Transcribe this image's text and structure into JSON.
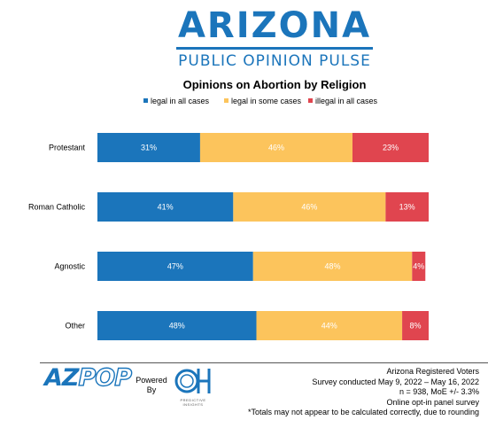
{
  "header": {
    "brand_name": "ARIZONA",
    "brand_sub": "PUBLIC OPINION PULSE"
  },
  "chart_data": {
    "type": "bar",
    "orientation": "horizontal",
    "stacked": true,
    "title": "Opinions on Abortion by Religion",
    "categories": [
      "Protestant",
      "Roman Catholic",
      "Agnostic",
      "Other"
    ],
    "series": [
      {
        "name": "legal in all cases",
        "color": "#1b75bb",
        "values": [
          31,
          41,
          47,
          48
        ],
        "labels": [
          "31%",
          "41%",
          "47%",
          "48%"
        ]
      },
      {
        "name": "legal in some cases",
        "color": "#fcc45c",
        "values": [
          46,
          46,
          48,
          44
        ],
        "labels": [
          "46%",
          "46%",
          "48%",
          "44%"
        ]
      },
      {
        "name": "illegal in all cases",
        "color": "#e0454f",
        "values": [
          23,
          13,
          4,
          8
        ],
        "labels": [
          "23%",
          "13%",
          "4%",
          "8%"
        ]
      }
    ],
    "xlim": [
      0,
      100
    ],
    "legend": "top",
    "grid": false
  },
  "footer": {
    "logo_az": "AZ",
    "logo_pop": "POP",
    "powered_by": "Powered By",
    "partner_logo": "OH",
    "partner_caption": "PREDICTIVE INSIGHTS",
    "notes": [
      "Arizona Registered Voters",
      "Survey conducted May 9, 2022 – May 16, 2022",
      "n = 938, MoE +/- 3.3%",
      "Online opt-in panel survey",
      "*Totals may not appear to be calculated correctly, due to rounding"
    ]
  }
}
